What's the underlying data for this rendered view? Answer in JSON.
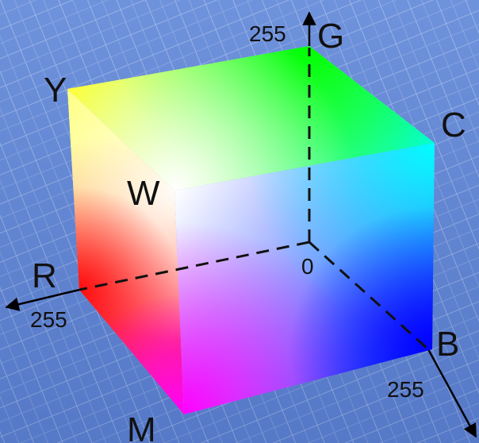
{
  "axes": {
    "red": {
      "letter": "R",
      "max_label": "255"
    },
    "green": {
      "letter": "G",
      "max_label": "255"
    },
    "blue": {
      "letter": "B",
      "max_label": "255"
    },
    "origin_label": "0"
  },
  "vertices": {
    "yellow": "Y",
    "white": "W",
    "cyan": "C",
    "magenta": "M"
  },
  "colors": {
    "background": "#5f86d8",
    "grid_line": "#9db6ea",
    "red": "#ff0000",
    "green": "#00ff00",
    "blue": "#0000ff",
    "yellow": "#ffff00",
    "cyan": "#00ffff",
    "magenta": "#ff00ff",
    "white": "#ffffff"
  }
}
